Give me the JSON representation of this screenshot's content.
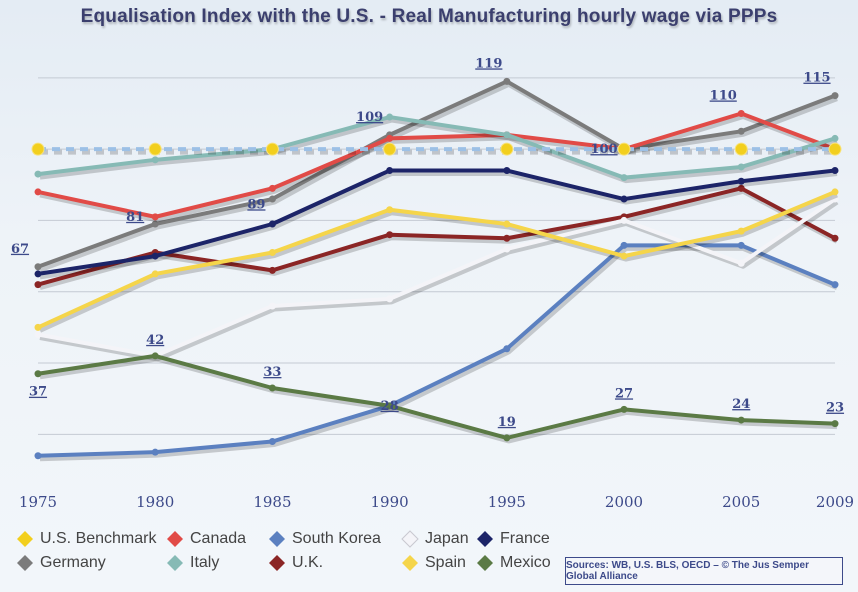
{
  "chart_data": {
    "type": "line",
    "title": "Equalisation Index with the U.S. - Real Manufacturing hourly wage via PPPs",
    "x": [
      1975,
      1980,
      1985,
      1990,
      1995,
      2000,
      2005,
      2009
    ],
    "ylim": [
      10,
      125
    ],
    "series": [
      {
        "name": "U.S. Benchmark",
        "color": "#f2cf1e",
        "dashed": true,
        "values": [
          100,
          100,
          100,
          100,
          100,
          100,
          100,
          100
        ]
      },
      {
        "name": "Germany",
        "color": "#7b7b7b",
        "dashed": false,
        "values": [
          67,
          79,
          86,
          104,
          119,
          100,
          105,
          115
        ]
      },
      {
        "name": "Canada",
        "color": "#e14b47",
        "dashed": false,
        "values": [
          88,
          81,
          89,
          103,
          104,
          100,
          110,
          100
        ]
      },
      {
        "name": "Italy",
        "color": "#86bab5",
        "dashed": false,
        "values": [
          93,
          97,
          100,
          109,
          104,
          92,
          95,
          103
        ]
      },
      {
        "name": "South Korea",
        "color": "#5b80c0",
        "dashed": false,
        "values": [
          14,
          15,
          18,
          28,
          44,
          73,
          73,
          62
        ]
      },
      {
        "name": "U.K.",
        "color": "#8b2525",
        "dashed": false,
        "values": [
          62,
          71,
          66,
          76,
          75,
          81,
          89,
          75
        ]
      },
      {
        "name": "Japan",
        "color": "#f4f4f8",
        "dashed": false,
        "values": [
          48,
          42,
          56,
          58,
          72,
          80,
          68,
          86
        ]
      },
      {
        "name": "Spain",
        "color": "#f5d54a",
        "dashed": false,
        "values": [
          50,
          65,
          71,
          83,
          79,
          70,
          77,
          88
        ]
      },
      {
        "name": "France",
        "color": "#1c2468",
        "dashed": false,
        "values": [
          65,
          70,
          79,
          94,
          94,
          86,
          91,
          94
        ]
      },
      {
        "name": "Mexico",
        "color": "#5b7a45",
        "dashed": false,
        "values": [
          37,
          42,
          33,
          28,
          19,
          27,
          24,
          23
        ]
      }
    ],
    "annotations": [
      {
        "text": "67",
        "x": 1975,
        "y": 67,
        "pos": "above-left"
      },
      {
        "text": "37",
        "x": 1975,
        "y": 37,
        "pos": "below"
      },
      {
        "text": "81",
        "x": 1980,
        "y": 81,
        "pos": "left"
      },
      {
        "text": "42",
        "x": 1980,
        "y": 42,
        "pos": "above"
      },
      {
        "text": "89",
        "x": 1985,
        "y": 89,
        "pos": "below-left"
      },
      {
        "text": "33",
        "x": 1985,
        "y": 33,
        "pos": "above"
      },
      {
        "text": "109",
        "x": 1990,
        "y": 109,
        "pos": "left"
      },
      {
        "text": "28",
        "x": 1990,
        "y": 28,
        "pos": "on"
      },
      {
        "text": "119",
        "x": 1995,
        "y": 119,
        "pos": "above-left"
      },
      {
        "text": "19",
        "x": 1995,
        "y": 19,
        "pos": "above"
      },
      {
        "text": "100",
        "x": 2000,
        "y": 100,
        "pos": "left"
      },
      {
        "text": "27",
        "x": 2000,
        "y": 27,
        "pos": "above"
      },
      {
        "text": "110",
        "x": 2005,
        "y": 110,
        "pos": "above-left"
      },
      {
        "text": "24",
        "x": 2005,
        "y": 24,
        "pos": "above"
      },
      {
        "text": "115",
        "x": 2009,
        "y": 115,
        "pos": "above-left"
      },
      {
        "text": "23",
        "x": 2009,
        "y": 23,
        "pos": "above"
      }
    ],
    "grid": true,
    "legend_position": "bottom"
  },
  "legend": {
    "row1": [
      "U.S. Benchmark",
      "Canada",
      "South Korea",
      "Japan",
      "France"
    ],
    "row2": [
      "Germany",
      "Italy",
      "U.K.",
      "Spain",
      "Mexico"
    ]
  },
  "source": "Sources: WB, U.S. BLS, OECD – © The Jus Semper Global Alliance"
}
